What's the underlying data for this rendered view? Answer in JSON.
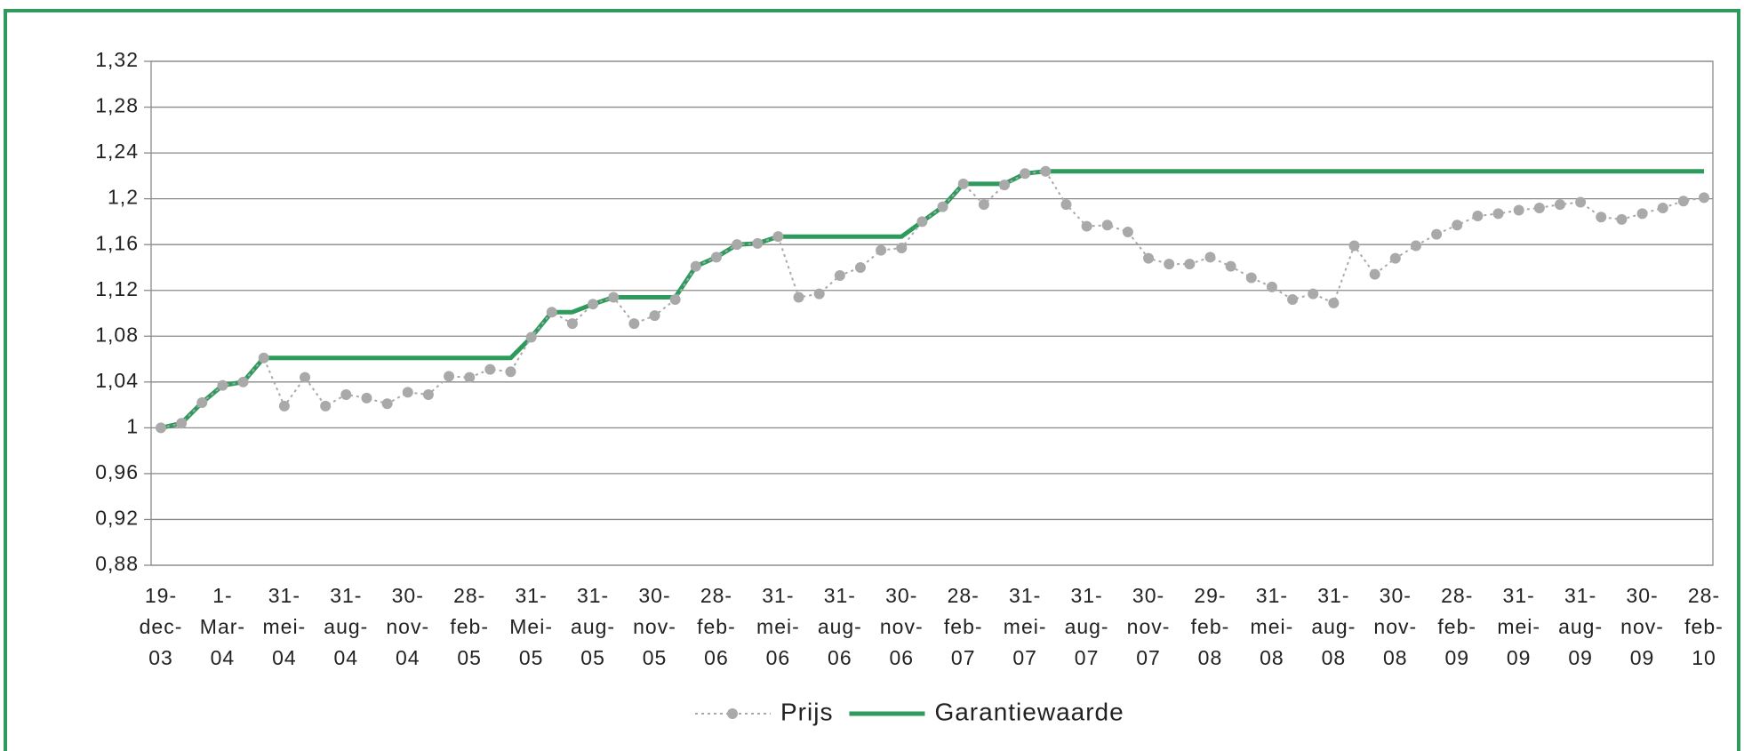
{
  "chart_data": {
    "type": "line",
    "categories": [
      [
        "19-",
        "dec-",
        "03"
      ],
      null,
      null,
      [
        "1-",
        "Mar-",
        "04"
      ],
      null,
      null,
      [
        "31-",
        "mei-",
        "04"
      ],
      null,
      null,
      [
        "31-",
        "aug-",
        "04"
      ],
      null,
      null,
      [
        "30-",
        "nov-",
        "04"
      ],
      null,
      null,
      [
        "28-",
        "feb-",
        "05"
      ],
      null,
      null,
      [
        "31-",
        "Mei-",
        "05"
      ],
      null,
      null,
      [
        "31-",
        "aug-",
        "05"
      ],
      null,
      null,
      [
        "30-",
        "nov-",
        "05"
      ],
      null,
      null,
      [
        "28-",
        "feb-",
        "06"
      ],
      null,
      null,
      [
        "31-",
        "mei-",
        "06"
      ],
      null,
      null,
      [
        "31-",
        "aug-",
        "06"
      ],
      null,
      null,
      [
        "30-",
        "nov-",
        "06"
      ],
      null,
      null,
      [
        "28-",
        "feb-",
        "07"
      ],
      null,
      null,
      [
        "31-",
        "mei-",
        "07"
      ],
      null,
      null,
      [
        "31-",
        "aug-",
        "07"
      ],
      null,
      null,
      [
        "30-",
        "nov-",
        "07"
      ],
      null,
      null,
      [
        "29-",
        "feb-",
        "08"
      ],
      null,
      null,
      [
        "31-",
        "mei-",
        "08"
      ],
      null,
      null,
      [
        "31-",
        "aug-",
        "08"
      ],
      null,
      null,
      [
        "30-",
        "nov-",
        "08"
      ],
      null,
      null,
      [
        "28-",
        "feb-",
        "09"
      ],
      null,
      null,
      [
        "31-",
        "mei-",
        "09"
      ],
      null,
      null,
      [
        "31-",
        "aug-",
        "09"
      ],
      null,
      null,
      [
        "30-",
        "nov-",
        "09"
      ],
      null,
      null,
      [
        "28-",
        "feb-",
        "10"
      ]
    ],
    "series": [
      {
        "name": "Prijs",
        "color": "#a9a9a9",
        "style": "dotted-markers",
        "values": [
          1.0,
          1.004,
          1.022,
          1.037,
          1.04,
          1.061,
          1.019,
          1.044,
          1.019,
          1.029,
          1.026,
          1.021,
          1.031,
          1.029,
          1.045,
          1.044,
          1.051,
          1.049,
          1.079,
          1.101,
          1.091,
          1.108,
          1.114,
          1.091,
          1.098,
          1.112,
          1.141,
          1.149,
          1.16,
          1.161,
          1.167,
          1.114,
          1.117,
          1.133,
          1.14,
          1.155,
          1.157,
          1.18,
          1.193,
          1.213,
          1.195,
          1.212,
          1.222,
          1.224,
          1.195,
          1.176,
          1.177,
          1.171,
          1.148,
          1.143,
          1.143,
          1.149,
          1.141,
          1.131,
          1.123,
          1.112,
          1.117,
          1.109,
          1.159,
          1.134,
          1.148,
          1.159,
          1.169,
          1.177,
          1.185,
          1.187,
          1.19,
          1.192,
          1.195,
          1.197,
          1.184,
          1.182,
          1.187,
          1.192,
          1.198,
          1.201
        ]
      },
      {
        "name": "Garantiewaarde",
        "color": "#2e9a5c",
        "style": "solid",
        "values": [
          1.0,
          1.004,
          1.022,
          1.037,
          1.04,
          1.061,
          1.061,
          1.061,
          1.061,
          1.061,
          1.061,
          1.061,
          1.061,
          1.061,
          1.061,
          1.061,
          1.061,
          1.061,
          1.079,
          1.101,
          1.101,
          1.108,
          1.114,
          1.114,
          1.114,
          1.114,
          1.141,
          1.149,
          1.16,
          1.161,
          1.167,
          1.167,
          1.167,
          1.167,
          1.167,
          1.167,
          1.167,
          1.18,
          1.193,
          1.213,
          1.213,
          1.213,
          1.222,
          1.224,
          1.224,
          1.224,
          1.224,
          1.224,
          1.224,
          1.224,
          1.224,
          1.224,
          1.224,
          1.224,
          1.224,
          1.224,
          1.224,
          1.224,
          1.224,
          1.224,
          1.224,
          1.224,
          1.224,
          1.224,
          1.224,
          1.224,
          1.224,
          1.224,
          1.224,
          1.224,
          1.224,
          1.224,
          1.224,
          1.224,
          1.224,
          1.224
        ]
      }
    ],
    "ylim": [
      0.88,
      1.32
    ],
    "yticks": [
      {
        "value": 0.88,
        "label": "0,88"
      },
      {
        "value": 0.92,
        "label": "0,92"
      },
      {
        "value": 0.96,
        "label": "0,96"
      },
      1,
      {
        "value": 1.04,
        "label": "1,04"
      },
      {
        "value": 1.08,
        "label": "1,08"
      },
      {
        "value": 1.12,
        "label": "1,12"
      },
      {
        "value": 1.16,
        "label": "1,16"
      },
      {
        "value": 1.2,
        "label": "1,2"
      },
      {
        "value": 1.24,
        "label": "1,24"
      },
      {
        "value": 1.28,
        "label": "1,28"
      },
      {
        "value": 1.32,
        "label": "1,32"
      }
    ],
    "grid": true,
    "legend": "bottom",
    "frame_color": "#2e9a5c"
  }
}
